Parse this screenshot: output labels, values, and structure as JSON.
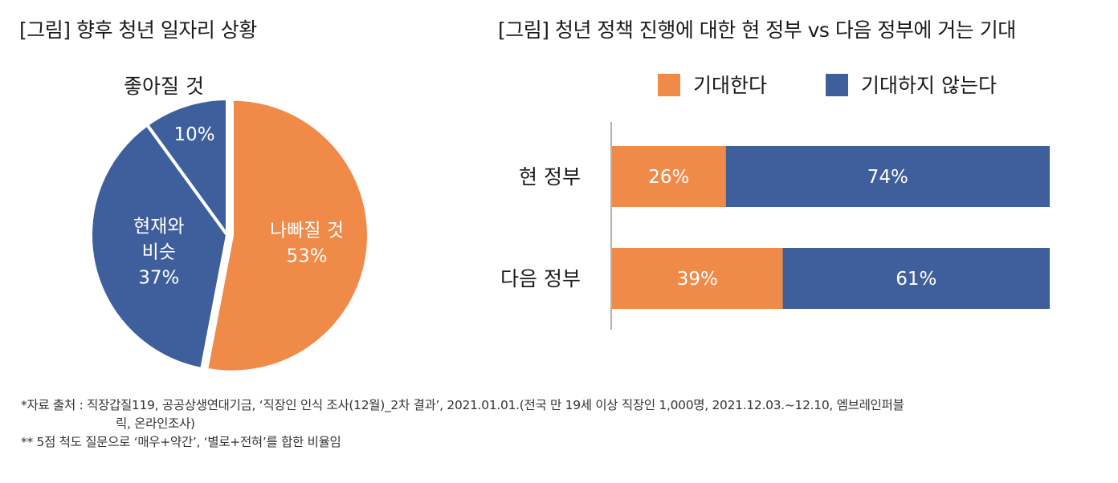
{
  "titles": {
    "left": "[그림] 향후 청년 일자리 상황",
    "right": "[그림] 청년 정책 진행에 대한 현 정부 vs 다음 정부에 거는 기대"
  },
  "colors": {
    "orange": "#F08A49",
    "blue": "#3F5F9C",
    "text": "#1a1a1a"
  },
  "chart_data": [
    {
      "type": "pie",
      "slices": [
        {
          "label_lines": [
            "나빠질 것"
          ],
          "value": 53,
          "value_label": "53%",
          "color": "#F08A49"
        },
        {
          "label_lines": [
            "현재와",
            "비슷"
          ],
          "value": 37,
          "value_label": "37%",
          "color": "#3F5F9C"
        },
        {
          "label_lines": [],
          "value": 10,
          "value_label": "10%",
          "color": "#3F5F9C",
          "outside_label": "좋아질 것"
        }
      ]
    },
    {
      "type": "bar",
      "orientation": "horizontal",
      "stacked": true,
      "categories": [
        "현 정부",
        "다음 정부"
      ],
      "series": [
        {
          "name": "기대한다",
          "values": [
            26,
            39
          ],
          "labels": [
            "26%",
            "39%"
          ],
          "color": "#F08A49"
        },
        {
          "name": "기대하지 않는다",
          "values": [
            74,
            61
          ],
          "labels": [
            "74%",
            "61%"
          ],
          "color": "#3F5F9C"
        }
      ],
      "xlim": [
        0,
        100
      ],
      "legend": "top"
    }
  ],
  "notes": [
    "*자료 출처 : 직장갑질119, 공공상생연대기금, ‘직장인 인식 조사(12월)_2차 결과’, 2021.01.01.(전국 만 19세 이상 직장인 1,000명, 2021.12.03.~12.10, 엠브레인퍼블",
    "릭, 온라인조사)",
    "** 5점 척도 질문으로 ‘매우+약간’, ‘별로+전혀’를 합한 비율임"
  ]
}
